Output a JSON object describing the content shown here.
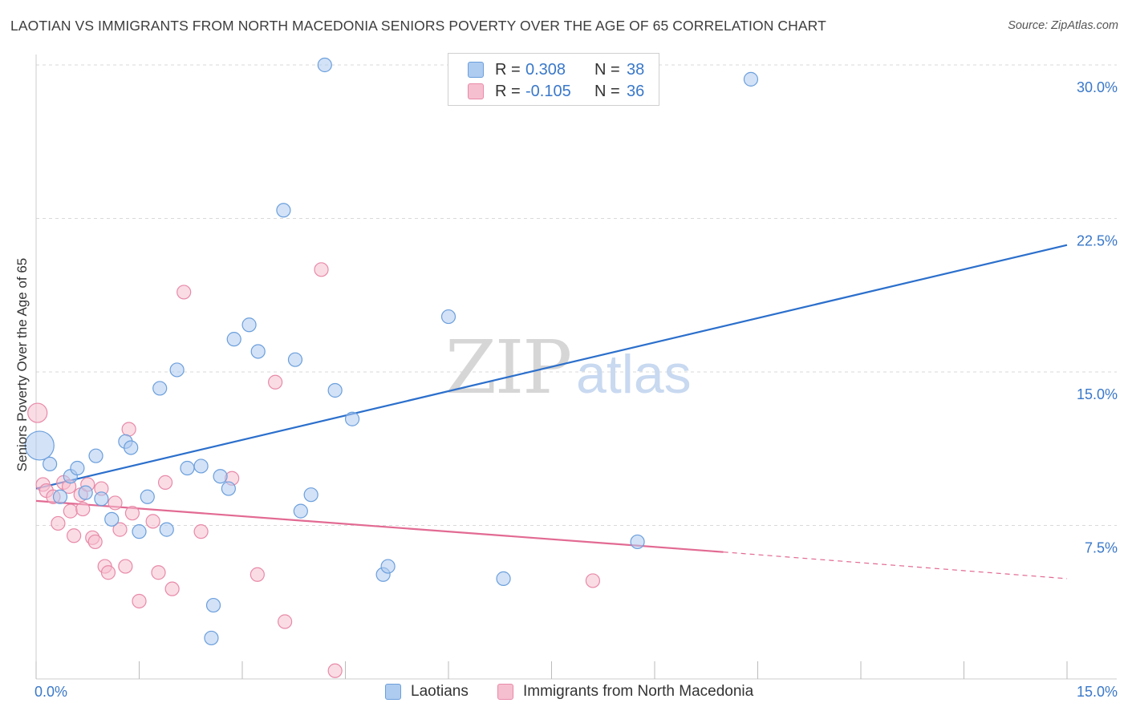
{
  "title": "LAOTIAN VS IMMIGRANTS FROM NORTH MACEDONIA SENIORS POVERTY OVER THE AGE OF 65 CORRELATION CHART",
  "source": "Source: ZipAtlas.com",
  "watermark": {
    "zip": "ZIP",
    "atlas": "atlas"
  },
  "legend": {
    "series1": {
      "r_label": "R =",
      "r_value": "0.308",
      "n_label": "N =",
      "n_value": "38"
    },
    "series2": {
      "r_label": "R =",
      "r_value": "-0.105",
      "n_label": "N =",
      "n_value": "36"
    }
  },
  "bottom_legend": {
    "series1": "Laotians",
    "series2": "Immigrants from North Macedonia"
  },
  "colors": {
    "blue_fill": "#aecbf0",
    "blue_stroke": "#6b9fdc",
    "blue_line": "#2b6fcc",
    "pink_fill": "#f6bfd0",
    "pink_stroke": "#e88aa8",
    "pink_line": "#e26a93",
    "grid": "#d9d9d9",
    "tick_label": "#3a78c9"
  },
  "chart_data": {
    "type": "scatter",
    "title": "LAOTIAN VS IMMIGRANTS FROM NORTH MACEDONIA SENIORS POVERTY OVER THE AGE OF 65 CORRELATION CHART",
    "xlabel": "",
    "ylabel": "Seniors Poverty Over the Age of 65",
    "xlim": [
      0,
      15
    ],
    "ylim": [
      0,
      31
    ],
    "x_tick_labels": [
      {
        "value": 0,
        "label": "0.0%"
      },
      {
        "value": 15,
        "label": "15.0%"
      }
    ],
    "y_tick_labels": [
      {
        "value": 7.5,
        "label": "7.5%"
      },
      {
        "value": 15,
        "label": "15.0%"
      },
      {
        "value": 22.5,
        "label": "22.5%"
      },
      {
        "value": 30,
        "label": "30.0%"
      }
    ],
    "series": [
      {
        "name": "Laotians",
        "R": 0.308,
        "N": 38,
        "points": [
          {
            "x": 0.05,
            "y": 11.4,
            "big": true
          },
          {
            "x": 0.2,
            "y": 10.5
          },
          {
            "x": 0.35,
            "y": 8.9
          },
          {
            "x": 0.5,
            "y": 9.9
          },
          {
            "x": 0.6,
            "y": 10.3
          },
          {
            "x": 0.72,
            "y": 9.1
          },
          {
            "x": 0.87,
            "y": 10.9
          },
          {
            "x": 0.95,
            "y": 8.8
          },
          {
            "x": 1.1,
            "y": 7.8
          },
          {
            "x": 1.3,
            "y": 11.6
          },
          {
            "x": 1.38,
            "y": 11.3
          },
          {
            "x": 1.5,
            "y": 7.2
          },
          {
            "x": 1.62,
            "y": 8.9
          },
          {
            "x": 1.8,
            "y": 14.2
          },
          {
            "x": 1.9,
            "y": 7.3
          },
          {
            "x": 2.05,
            "y": 15.1
          },
          {
            "x": 2.2,
            "y": 10.3
          },
          {
            "x": 2.4,
            "y": 10.4
          },
          {
            "x": 2.58,
            "y": 3.6
          },
          {
            "x": 2.55,
            "y": 2.0
          },
          {
            "x": 2.68,
            "y": 9.9
          },
          {
            "x": 2.8,
            "y": 9.3
          },
          {
            "x": 2.88,
            "y": 16.6
          },
          {
            "x": 3.1,
            "y": 17.3
          },
          {
            "x": 3.23,
            "y": 16.0
          },
          {
            "x": 3.6,
            "y": 22.9
          },
          {
            "x": 3.77,
            "y": 15.6
          },
          {
            "x": 3.85,
            "y": 8.2
          },
          {
            "x": 4.0,
            "y": 9.0
          },
          {
            "x": 4.2,
            "y": 30.0
          },
          {
            "x": 4.35,
            "y": 14.1
          },
          {
            "x": 4.6,
            "y": 12.7
          },
          {
            "x": 5.05,
            "y": 5.1
          },
          {
            "x": 5.12,
            "y": 5.5
          },
          {
            "x": 6.0,
            "y": 17.7
          },
          {
            "x": 6.8,
            "y": 4.9
          },
          {
            "x": 8.75,
            "y": 6.7
          },
          {
            "x": 10.4,
            "y": 29.3
          }
        ],
        "trend": {
          "x0": 0,
          "y0": 9.3,
          "x1": 15,
          "y1": 21.2
        }
      },
      {
        "name": "Immigrants from North Macedonia",
        "R": -0.105,
        "N": 36,
        "points": [
          {
            "x": 0.02,
            "y": 13.0
          },
          {
            "x": 0.1,
            "y": 9.5
          },
          {
            "x": 0.15,
            "y": 9.2
          },
          {
            "x": 0.25,
            "y": 8.9
          },
          {
            "x": 0.32,
            "y": 7.6
          },
          {
            "x": 0.4,
            "y": 9.6
          },
          {
            "x": 0.48,
            "y": 9.4
          },
          {
            "x": 0.5,
            "y": 8.2
          },
          {
            "x": 0.55,
            "y": 7.0
          },
          {
            "x": 0.65,
            "y": 9.0
          },
          {
            "x": 0.68,
            "y": 8.3
          },
          {
            "x": 0.75,
            "y": 9.5
          },
          {
            "x": 0.82,
            "y": 6.9
          },
          {
            "x": 0.86,
            "y": 6.7
          },
          {
            "x": 0.95,
            "y": 9.3
          },
          {
            "x": 1.0,
            "y": 5.5
          },
          {
            "x": 1.05,
            "y": 5.2
          },
          {
            "x": 1.15,
            "y": 8.6
          },
          {
            "x": 1.22,
            "y": 7.3
          },
          {
            "x": 1.3,
            "y": 5.5
          },
          {
            "x": 1.35,
            "y": 12.2
          },
          {
            "x": 1.4,
            "y": 8.1
          },
          {
            "x": 1.5,
            "y": 3.8
          },
          {
            "x": 1.7,
            "y": 7.7
          },
          {
            "x": 1.78,
            "y": 5.2
          },
          {
            "x": 1.88,
            "y": 9.6
          },
          {
            "x": 1.98,
            "y": 4.4
          },
          {
            "x": 2.15,
            "y": 18.9
          },
          {
            "x": 2.4,
            "y": 7.2
          },
          {
            "x": 2.85,
            "y": 9.8
          },
          {
            "x": 3.22,
            "y": 5.1
          },
          {
            "x": 3.48,
            "y": 14.5
          },
          {
            "x": 3.62,
            "y": 2.8
          },
          {
            "x": 4.15,
            "y": 20.0
          },
          {
            "x": 4.35,
            "y": 0.4
          },
          {
            "x": 8.1,
            "y": 4.8
          }
        ],
        "trend": {
          "x0": 0,
          "y0": 8.7,
          "x1": 10.0,
          "y1": 6.2
        },
        "trend_dashed": {
          "x0": 10.0,
          "y0": 6.2,
          "x1": 15,
          "y1": 4.9
        }
      }
    ]
  }
}
